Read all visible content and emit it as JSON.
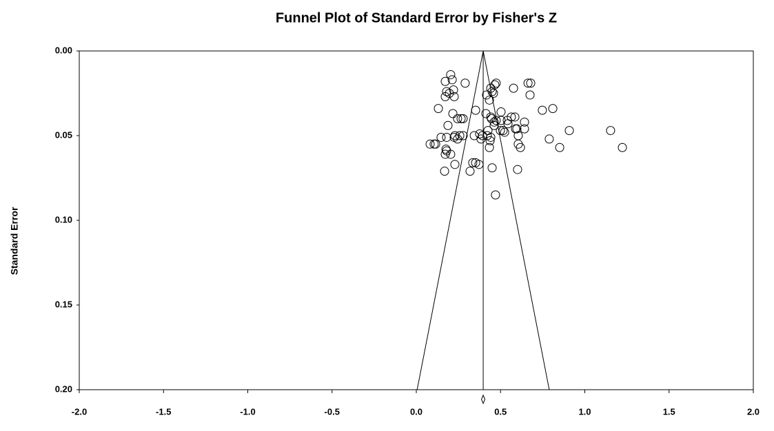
{
  "chart_data": {
    "type": "scatter",
    "title": "Funnel Plot of Standard Error by Fisher's Z",
    "y_label": "Standard Error",
    "xlim": [
      -2.0,
      2.0
    ],
    "xticks": [
      {
        "value": -2.0,
        "label": "-2.0"
      },
      {
        "value": -1.5,
        "label": "-1.5"
      },
      {
        "value": -1.0,
        "label": "-1.0"
      },
      {
        "value": -0.5,
        "label": "-0.5"
      },
      {
        "value": 0.0,
        "label": "0.0"
      },
      {
        "value": 0.5,
        "label": "0.5"
      },
      {
        "value": 1.0,
        "label": "1.0"
      },
      {
        "value": 1.5,
        "label": "1.5"
      },
      {
        "value": 2.0,
        "label": "2.0"
      }
    ],
    "ylim": [
      0.0,
      0.2
    ],
    "y_inverted": true,
    "yticks": [
      {
        "value": 0.0,
        "label": "0.00"
      },
      {
        "value": 0.05,
        "label": "0.05"
      },
      {
        "value": 0.1,
        "label": "0.10"
      },
      {
        "value": 0.15,
        "label": "0.15"
      },
      {
        "value": 0.2,
        "label": "0.20"
      }
    ],
    "funnel": {
      "center": 0.397,
      "lower_bottom": 0.005,
      "upper_bottom": 0.789
    },
    "color": "#000000",
    "x": [
      0.204,
      0.213,
      0.172,
      0.29,
      0.18,
      0.221,
      0.196,
      0.225,
      0.172,
      0.131,
      0.217,
      0.245,
      0.266,
      0.278,
      0.352,
      0.188,
      0.18,
      0.147,
      0.115,
      0.082,
      0.106,
      0.225,
      0.245,
      0.258,
      0.278,
      0.176,
      0.18,
      0.172,
      0.168,
      0.204,
      0.229,
      0.335,
      0.352,
      0.372,
      0.319,
      0.229,
      0.344,
      0.393,
      0.376,
      0.417,
      0.442,
      0.466,
      0.474,
      0.45,
      0.434,
      0.458,
      0.413,
      0.442,
      0.446,
      0.462,
      0.474,
      0.503,
      0.462,
      0.425,
      0.421,
      0.442,
      0.434,
      0.438,
      0.499,
      0.524,
      0.515,
      0.54,
      0.564,
      0.585,
      0.589,
      0.597,
      0.605,
      0.605,
      0.618,
      0.642,
      0.642,
      0.663,
      0.679,
      0.577,
      0.675,
      0.748,
      0.81,
      0.908,
      0.789,
      0.851,
      1.153,
      1.223,
      0.45,
      0.601,
      0.47,
      0.503,
      0.544,
      0.384
    ],
    "values": [
      0.014,
      0.017,
      0.018,
      0.019,
      0.024,
      0.023,
      0.025,
      0.027,
      0.027,
      0.034,
      0.037,
      0.04,
      0.04,
      0.04,
      0.035,
      0.044,
      0.051,
      0.051,
      0.055,
      0.055,
      0.055,
      0.051,
      0.052,
      0.05,
      0.05,
      0.058,
      0.059,
      0.061,
      0.071,
      0.061,
      0.067,
      0.066,
      0.066,
      0.067,
      0.071,
      0.05,
      0.05,
      0.05,
      0.049,
      0.026,
      0.022,
      0.02,
      0.019,
      0.024,
      0.029,
      0.025,
      0.037,
      0.039,
      0.04,
      0.042,
      0.041,
      0.036,
      0.044,
      0.047,
      0.05,
      0.051,
      0.057,
      0.053,
      0.047,
      0.048,
      0.047,
      0.041,
      0.039,
      0.039,
      0.046,
      0.046,
      0.05,
      0.055,
      0.057,
      0.042,
      0.046,
      0.019,
      0.019,
      0.022,
      0.026,
      0.035,
      0.034,
      0.047,
      0.052,
      0.057,
      0.047,
      0.057,
      0.069,
      0.07,
      0.085,
      0.041,
      0.043,
      0.052
    ]
  }
}
